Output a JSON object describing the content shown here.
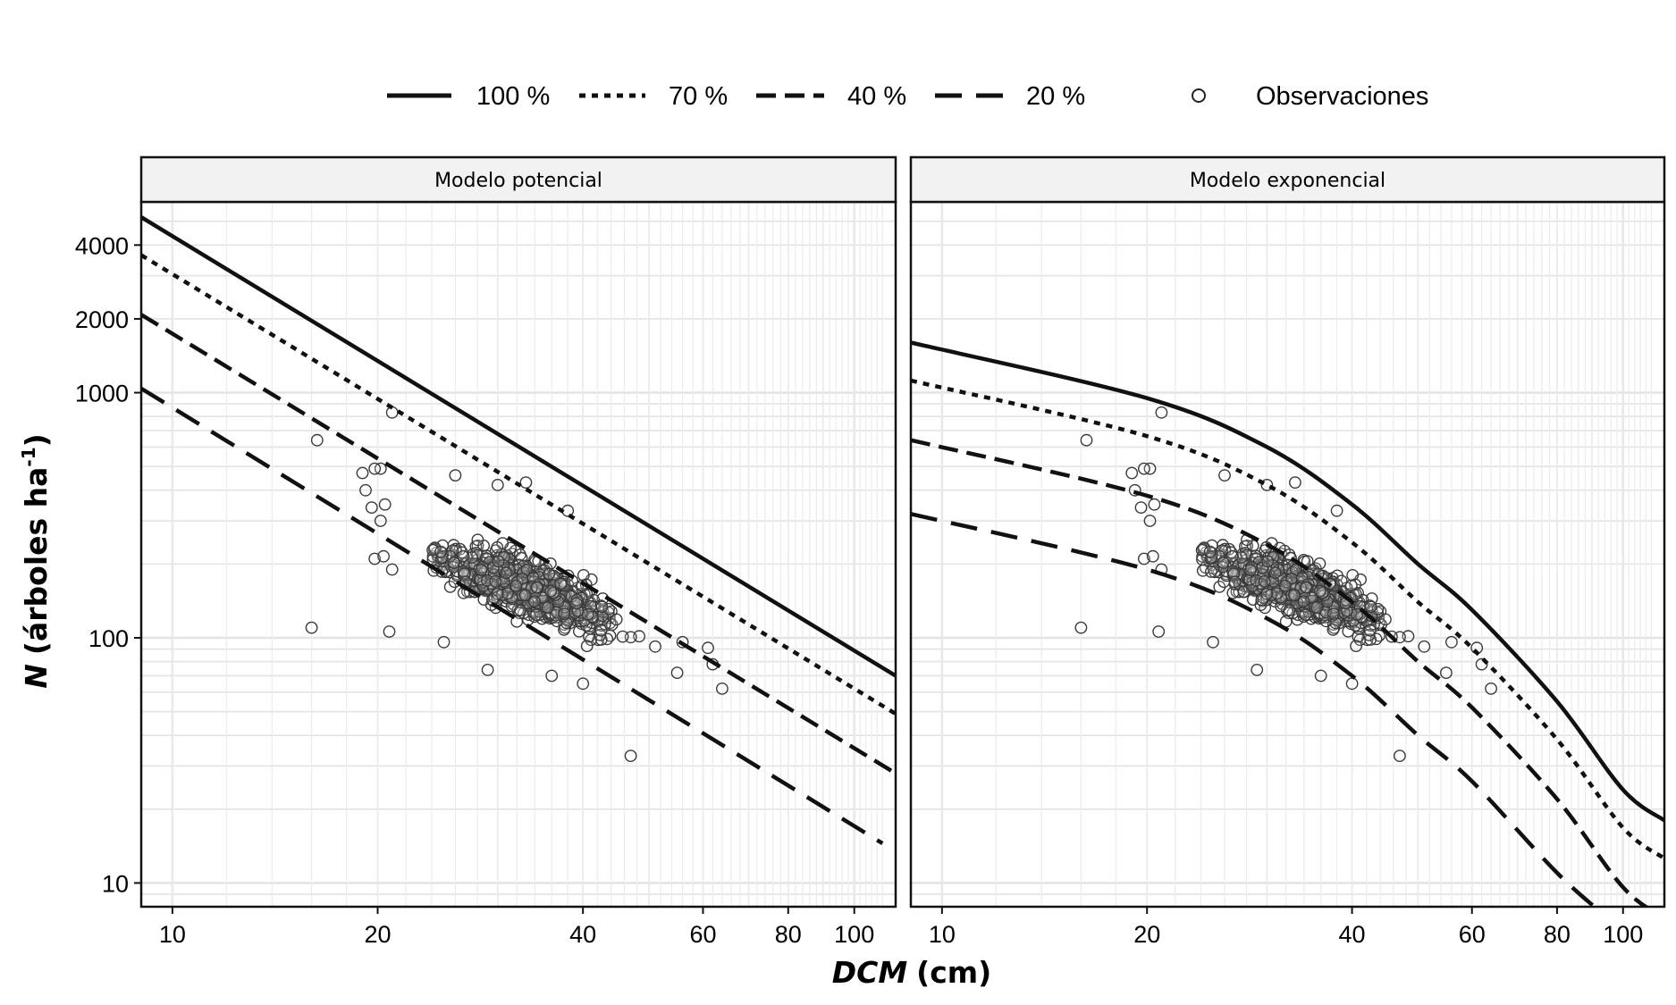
{
  "chart_data": {
    "type": "scatter",
    "scale": {
      "x": "log",
      "y": "log"
    },
    "grid": true,
    "legend_placement": "top",
    "x_label": {
      "var": "DCM",
      "unit": "(cm)"
    },
    "y_label": {
      "var": "N",
      "rest": "(árboles ha",
      "sup": "-1",
      "close": ")"
    },
    "xlim": [
      9,
      115
    ],
    "ylim": [
      8,
      6000
    ],
    "x_ticks": [
      10,
      20,
      40,
      60,
      80,
      100
    ],
    "y_ticks": [
      10,
      100,
      1000,
      2000,
      4000
    ],
    "x_tick_labels": [
      "10",
      "20",
      "40",
      "60",
      "80",
      "100"
    ],
    "y_tick_labels": [
      "10",
      "100",
      "1000",
      "2000",
      "4000"
    ],
    "legend": [
      {
        "label": "100 %",
        "dash": "solid"
      },
      {
        "label": "70 %",
        "dash": "dotted"
      },
      {
        "label": "40 %",
        "dash": "dashed"
      },
      {
        "label": "20 %",
        "dash": "longdash"
      },
      {
        "label": "Observaciones",
        "marker": "open-circle"
      }
    ],
    "panels": [
      {
        "title": "Modelo potencial",
        "model": "power",
        "lines": [
          {
            "level": "100 %",
            "x": [
              9,
              115
            ],
            "y": [
              5200,
              70
            ]
          },
          {
            "level": "70 %",
            "x": [
              9,
              115
            ],
            "y": [
              3640,
              49
            ]
          },
          {
            "level": "40 %",
            "x": [
              9,
              115
            ],
            "y": [
              2080,
              28
            ]
          },
          {
            "level": "20 %",
            "x": [
              9,
              110
            ],
            "y": [
              1040,
              14.5
            ]
          }
        ]
      },
      {
        "title": "Modelo exponencial",
        "model": "exponential",
        "lines": [
          {
            "level": "100 %",
            "x": [
              9,
              20,
              30,
              40,
              50,
              60,
              80,
              100,
              115
            ],
            "y": [
              1600,
              950,
              600,
              350,
              200,
              130,
              55,
              24,
              18
            ]
          },
          {
            "level": "70 %",
            "x": [
              9,
              20,
              30,
              40,
              50,
              60,
              80,
              100,
              115
            ],
            "y": [
              1120,
              665,
              420,
              245,
              140,
              91,
              38.5,
              16.8,
              12.6
            ]
          },
          {
            "level": "40 %",
            "x": [
              9,
              20,
              30,
              40,
              50,
              60,
              80,
              100,
              115
            ],
            "y": [
              640,
              380,
              240,
              140,
              80,
              52,
              22,
              9.6,
              7.2
            ]
          },
          {
            "level": "20 %",
            "x": [
              9,
              20,
              30,
              40,
              50,
              60,
              80,
              95
            ],
            "y": [
              320,
              190,
              120,
              70,
              40,
              26,
              11,
              7.2
            ]
          }
        ]
      }
    ],
    "observations": {
      "cluster": {
        "x_range": [
          24,
          55
        ],
        "y_range": [
          60,
          400
        ],
        "center_x": 33,
        "center_y": 160,
        "count": 900
      },
      "outliers": [
        {
          "x": 16.3,
          "y": 640
        },
        {
          "x": 21,
          "y": 830
        },
        {
          "x": 20.2,
          "y": 490
        },
        {
          "x": 19.8,
          "y": 490
        },
        {
          "x": 19,
          "y": 470
        },
        {
          "x": 19.2,
          "y": 400
        },
        {
          "x": 19.6,
          "y": 340
        },
        {
          "x": 20.5,
          "y": 350
        },
        {
          "x": 20.2,
          "y": 300
        },
        {
          "x": 19.8,
          "y": 210
        },
        {
          "x": 20.4,
          "y": 215
        },
        {
          "x": 21,
          "y": 190
        },
        {
          "x": 16,
          "y": 110
        },
        {
          "x": 20.8,
          "y": 106
        },
        {
          "x": 47,
          "y": 33
        },
        {
          "x": 62,
          "y": 78
        },
        {
          "x": 64,
          "y": 62
        },
        {
          "x": 61,
          "y": 91
        },
        {
          "x": 56,
          "y": 96
        },
        {
          "x": 55,
          "y": 72
        },
        {
          "x": 29,
          "y": 74
        },
        {
          "x": 25,
          "y": 96
        },
        {
          "x": 40,
          "y": 65
        },
        {
          "x": 36,
          "y": 70
        },
        {
          "x": 26,
          "y": 460
        },
        {
          "x": 38,
          "y": 330
        },
        {
          "x": 33,
          "y": 430
        },
        {
          "x": 30,
          "y": 420
        }
      ]
    }
  }
}
